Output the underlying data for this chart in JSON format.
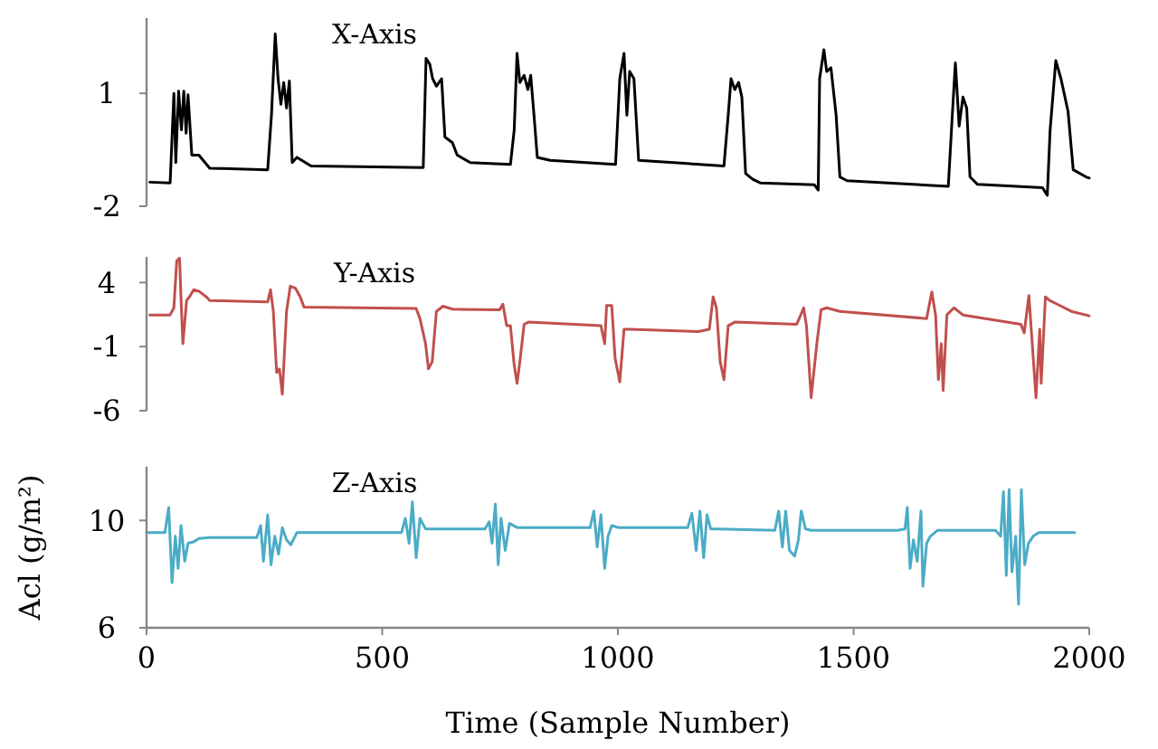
{
  "chart_data": [
    {
      "type": "line",
      "title": "X-Axis",
      "xlim": [
        0,
        2000
      ],
      "ylim": [
        -2,
        3
      ],
      "yticks": [
        1,
        -2
      ],
      "tick_labels": "y",
      "series": [
        {
          "color": "#000000",
          "x": [
            7,
            50,
            58,
            62,
            68,
            74,
            79,
            84,
            88,
            96,
            111,
            134,
            257,
            265,
            273,
            279,
            285,
            291,
            297,
            303,
            309,
            319,
            349,
            587,
            593,
            601,
            607,
            615,
            626,
            633,
            649,
            659,
            687,
            772,
            780,
            786,
            792,
            801,
            809,
            815,
            822,
            829,
            856,
            995,
            1004,
            1013,
            1019,
            1025,
            1034,
            1044,
            1225,
            1234,
            1240,
            1248,
            1256,
            1263,
            1271,
            1286,
            1302,
            1417,
            1425,
            1428,
            1437,
            1443,
            1452,
            1463,
            1471,
            1486,
            1701,
            1709,
            1716,
            1724,
            1732,
            1740,
            1747,
            1763,
            1901,
            1911,
            1917,
            1929,
            1940,
            1955,
            1966,
            1993,
            2000
          ],
          "values": [
            -1.36,
            -1.38,
            1.0,
            -0.84,
            1.06,
            0.03,
            1.06,
            -0.06,
            0.96,
            -0.64,
            -0.64,
            -0.99,
            -1.03,
            0.42,
            2.58,
            1.39,
            0.71,
            1.29,
            0.61,
            1.33,
            -0.84,
            -0.7,
            -0.93,
            -0.97,
            1.93,
            1.77,
            1.39,
            1.19,
            1.39,
            -0.16,
            -0.31,
            -0.64,
            -0.84,
            -0.89,
            0.03,
            2.06,
            1.29,
            1.48,
            1.1,
            1.48,
            0.42,
            -0.7,
            -0.78,
            -0.89,
            1.39,
            2.06,
            0.42,
            1.58,
            1.39,
            -0.78,
            -0.93,
            0.42,
            1.39,
            1.1,
            1.29,
            0.9,
            -1.13,
            -1.28,
            -1.38,
            -1.43,
            -1.57,
            1.39,
            2.16,
            1.58,
            1.68,
            0.42,
            -1.22,
            -1.32,
            -1.47,
            0.32,
            1.81,
            0.13,
            0.9,
            0.61,
            -1.22,
            -1.42,
            -1.51,
            -1.71,
            0.03,
            1.87,
            1.39,
            0.52,
            -1.03,
            -1.22,
            -1.25
          ]
        }
      ]
    },
    {
      "type": "line",
      "title": "Y-Axis",
      "xlim": [
        0,
        2000
      ],
      "ylim": [
        -6,
        6
      ],
      "yticks": [
        4,
        -1,
        -6
      ],
      "tick_labels": "y",
      "series": [
        {
          "color": "#c0504d",
          "x": [
            7,
            50,
            58,
            64,
            70,
            73,
            77,
            85,
            91,
            100,
            111,
            127,
            134,
            257,
            263,
            269,
            276,
            282,
            288,
            297,
            305,
            316,
            326,
            334,
            572,
            580,
            592,
            598,
            606,
            615,
            629,
            649,
            749,
            756,
            764,
            772,
            780,
            786,
            792,
            801,
            810,
            964,
            972,
            976,
            987,
            994,
            1004,
            1013,
            1025,
            1171,
            1194,
            1202,
            1209,
            1217,
            1225,
            1234,
            1248,
            1379,
            1388,
            1394,
            1400,
            1410,
            1422,
            1431,
            1443,
            1471,
            1655,
            1666,
            1674,
            1680,
            1686,
            1690,
            1698,
            1713,
            1732,
            1855,
            1862,
            1872,
            1878,
            1887,
            1895,
            1898,
            1907,
            1916,
            1932,
            1962,
            2000
          ],
          "values": [
            1.47,
            1.47,
            2.03,
            5.69,
            5.9,
            2.88,
            -0.78,
            2.6,
            2.88,
            3.44,
            3.33,
            2.88,
            2.6,
            2.48,
            3.44,
            1.75,
            -3.02,
            -2.74,
            -4.71,
            1.75,
            3.72,
            3.55,
            2.88,
            2.09,
            1.98,
            1.19,
            -0.78,
            -2.74,
            -2.18,
            1.75,
            2.15,
            1.92,
            1.87,
            2.31,
            0.63,
            0.63,
            -2.46,
            -3.87,
            -2.18,
            0.74,
            0.91,
            0.63,
            -0.78,
            2.2,
            2.2,
            -1.9,
            -3.75,
            0.35,
            0.35,
            0.18,
            0.35,
            2.88,
            2.03,
            -2.18,
            -3.58,
            0.63,
            0.91,
            0.74,
            1.47,
            2.03,
            0.63,
            -4.99,
            -0.78,
            1.87,
            2.03,
            1.75,
            1.19,
            3.27,
            1.47,
            -3.58,
            -0.78,
            -4.43,
            1.47,
            2.03,
            1.47,
            0.74,
            0.07,
            2.99,
            -0.21,
            -4.99,
            0.35,
            -3.87,
            2.88,
            2.6,
            2.31,
            1.75,
            1.4
          ]
        }
      ]
    },
    {
      "type": "line",
      "title": "Z-Axis",
      "xlabel": "Time (Sample Number)",
      "ylabel": "Acl (g/m²)",
      "xlim": [
        0,
        2000
      ],
      "xticks": [
        0,
        500,
        1000,
        1500,
        2000
      ],
      "ylim": [
        6,
        12
      ],
      "yticks": [
        10,
        6
      ],
      "series": [
        {
          "color": "#4bacc6",
          "x": [
            0,
            39,
            47,
            54,
            61,
            67,
            73,
            81,
            88,
            100,
            111,
            134,
            234,
            242,
            248,
            257,
            264,
            272,
            280,
            288,
            297,
            306,
            319,
            457,
            541,
            549,
            557,
            564,
            572,
            580,
            592,
            611,
            718,
            727,
            733,
            740,
            746,
            752,
            761,
            770,
            787,
            918,
            941,
            949,
            956,
            964,
            972,
            979,
            987,
            1002,
            1148,
            1157,
            1166,
            1174,
            1182,
            1189,
            1197,
            1210,
            1333,
            1341,
            1349,
            1356,
            1364,
            1375,
            1383,
            1389,
            1398,
            1410,
            1594,
            1609,
            1614,
            1620,
            1627,
            1635,
            1643,
            1647,
            1655,
            1663,
            1678,
            1801,
            1812,
            1818,
            1824,
            1830,
            1836,
            1844,
            1850,
            1856,
            1863,
            1871,
            1881,
            1893,
            1969
          ],
          "values": [
            9.55,
            9.55,
            10.48,
            7.68,
            9.41,
            8.21,
            9.81,
            8.48,
            9.15,
            9.2,
            9.33,
            9.36,
            9.36,
            9.81,
            8.48,
            10.21,
            8.35,
            9.41,
            8.75,
            9.73,
            9.28,
            9.09,
            9.55,
            9.55,
            9.55,
            10.08,
            9.15,
            10.69,
            8.61,
            10.08,
            9.68,
            9.68,
            9.68,
            9.95,
            9.15,
            10.61,
            8.35,
            10.08,
            8.88,
            9.89,
            9.73,
            9.73,
            9.73,
            10.35,
            9.01,
            10.21,
            8.21,
            9.41,
            9.81,
            9.73,
            9.73,
            10.27,
            8.88,
            10.35,
            8.61,
            10.21,
            9.68,
            9.68,
            9.63,
            10.35,
            9.01,
            10.35,
            8.88,
            8.67,
            9.28,
            10.35,
            9.68,
            9.63,
            9.63,
            9.68,
            10.48,
            8.21,
            9.28,
            8.48,
            10.35,
            7.55,
            9.15,
            9.41,
            9.63,
            9.63,
            9.41,
            11.07,
            7.95,
            11.15,
            8.08,
            9.41,
            6.88,
            11.15,
            8.35,
            9.15,
            9.41,
            9.55,
            9.55
          ]
        }
      ]
    }
  ]
}
